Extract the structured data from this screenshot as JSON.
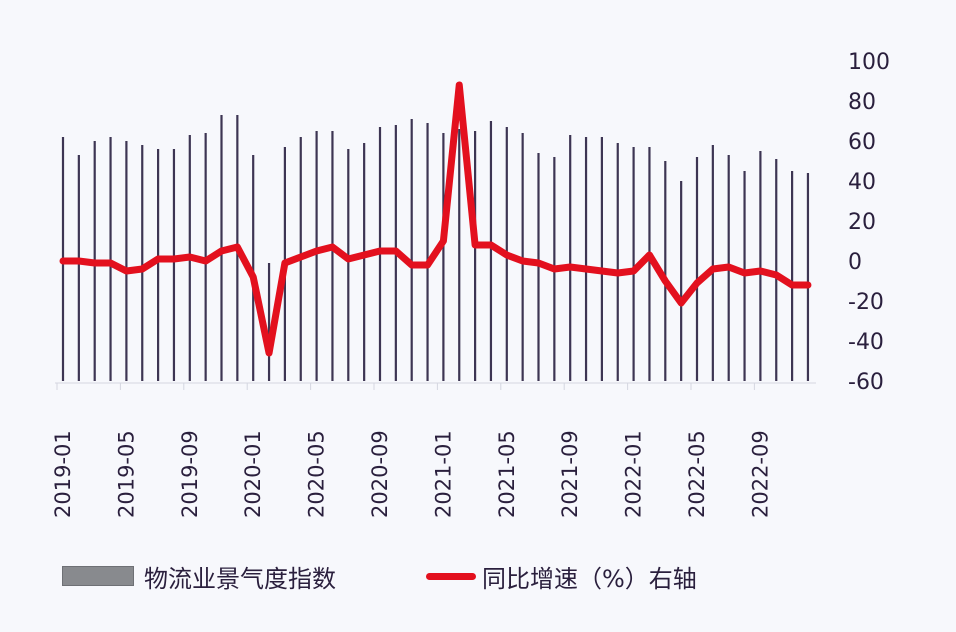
{
  "chart_data": {
    "type": "bar+line",
    "title": "",
    "categories": [
      "2019-01",
      "2019-02",
      "2019-03",
      "2019-04",
      "2019-05",
      "2019-06",
      "2019-07",
      "2019-08",
      "2019-09",
      "2019-10",
      "2019-11",
      "2019-12",
      "2020-01",
      "2020-02",
      "2020-03",
      "2020-04",
      "2020-05",
      "2020-06",
      "2020-07",
      "2020-08",
      "2020-09",
      "2020-10",
      "2020-11",
      "2020-12",
      "2021-01",
      "2021-02",
      "2021-03",
      "2021-04",
      "2021-05",
      "2021-06",
      "2021-07",
      "2021-08",
      "2021-09",
      "2021-10",
      "2021-11",
      "2021-12",
      "2022-01",
      "2022-02",
      "2022-03",
      "2022-04",
      "2022-05",
      "2022-06",
      "2022-07",
      "2022-08",
      "2022-09",
      "2022-10",
      "2022-11",
      "2022-12"
    ],
    "x_tick_labels": [
      "2019-01",
      "2019-05",
      "2019-09",
      "2020-01",
      "2020-05",
      "2020-09",
      "2021-01",
      "2021-05",
      "2021-09",
      "2022-01",
      "2022-05",
      "2022-09"
    ],
    "series": [
      {
        "name": "物流业景气度指数",
        "type": "bar",
        "axis": "left (hidden)",
        "color": "#3d3553",
        "values_on_right_axis_scale": [
          62,
          53,
          60,
          62,
          60,
          58,
          56,
          56,
          63,
          64,
          73,
          73,
          53,
          -1,
          57,
          62,
          65,
          65,
          56,
          59,
          67,
          68,
          71,
          69,
          64,
          66,
          65,
          70,
          67,
          64,
          54,
          52,
          63,
          62,
          62,
          59,
          57,
          57,
          50,
          40,
          52,
          58,
          53,
          45,
          55,
          51,
          45,
          44
        ]
      },
      {
        "name": "同比增速（%）右轴",
        "type": "line",
        "axis": "right",
        "color": "#e3101e",
        "values": [
          0,
          0,
          -1,
          -1,
          -5,
          -4,
          1,
          1,
          2,
          0,
          5,
          7,
          -8,
          -46,
          -1,
          2,
          5,
          7,
          1,
          3,
          5,
          5,
          -2,
          -2,
          10,
          88,
          8,
          8,
          3,
          0,
          -1,
          -4,
          -3,
          -4,
          -5,
          -6,
          -5,
          3,
          -10,
          -21,
          -11,
          -4,
          -3,
          -6,
          -5,
          -7,
          -12,
          -12
        ]
      }
    ],
    "y_right": {
      "ticks": [
        100,
        80,
        60,
        40,
        20,
        0,
        -20,
        -40,
        -60
      ],
      "range": [
        -60,
        100
      ]
    },
    "xlabel": "",
    "ylabel": "",
    "grid": false,
    "legend_position": "bottom"
  },
  "legend": {
    "bar_label": "物流业景气度指数",
    "line_label": "同比增速（%）右轴"
  }
}
